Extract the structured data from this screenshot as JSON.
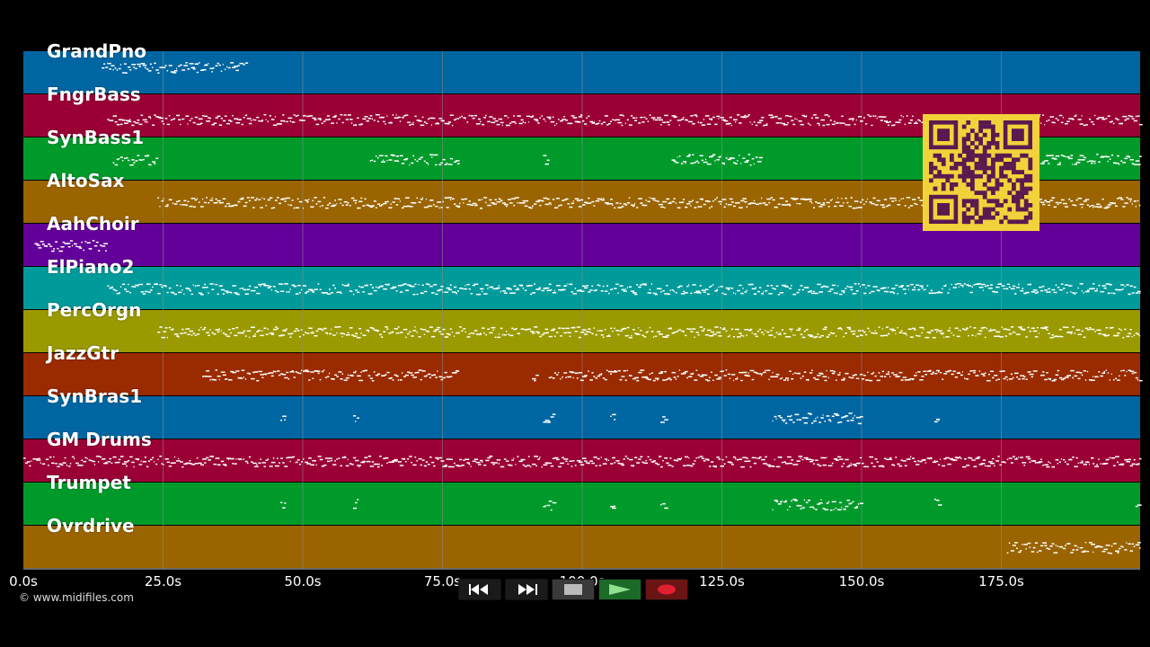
{
  "tracks": [
    {
      "name": "GrandPno",
      "color": "#0066a2"
    },
    {
      "name": "FngrBass",
      "color": "#9a0036"
    },
    {
      "name": "SynBass1",
      "color": "#009a2a"
    },
    {
      "name": "AltoSax",
      "color": "#9a6400"
    },
    {
      "name": "AahChoir",
      "color": "#64009a"
    },
    {
      "name": "ElPiano2",
      "color": "#009a9a"
    },
    {
      "name": "PercOrgn",
      "color": "#9a9a00"
    },
    {
      "name": "JazzGtr",
      "color": "#9a2a00"
    },
    {
      "name": "SynBras1",
      "color": "#0066a2"
    },
    {
      "name": "GM Drums",
      "color": "#9a0036"
    },
    {
      "name": "Trumpet",
      "color": "#009a2a"
    },
    {
      "name": "Ovrdrive",
      "color": "#9a6400"
    }
  ],
  "timeline": {
    "duration_s": 200,
    "ticks": [
      {
        "value": 0,
        "label": "0.0s"
      },
      {
        "value": 25,
        "label": "25.0s"
      },
      {
        "value": 50,
        "label": "50.0s"
      },
      {
        "value": 75,
        "label": "75.0s"
      },
      {
        "value": 100,
        "label": "100.0s"
      },
      {
        "value": 125,
        "label": "125.0s"
      },
      {
        "value": 150,
        "label": "150.0s"
      },
      {
        "value": 175,
        "label": "175.0s"
      }
    ]
  },
  "copyright": "© www.midifiles.com",
  "transport": {
    "rewind": "rewind-icon",
    "fast_forward": "fast-forward-icon",
    "stop": "stop-icon",
    "play": "play-icon",
    "record": "record-icon"
  },
  "colors": {
    "background": "#000000",
    "qr_background": "#f2d23a",
    "qr_modules": "#5a1a50",
    "notes": "#ffffff",
    "gridline": "#8a8a8a"
  }
}
